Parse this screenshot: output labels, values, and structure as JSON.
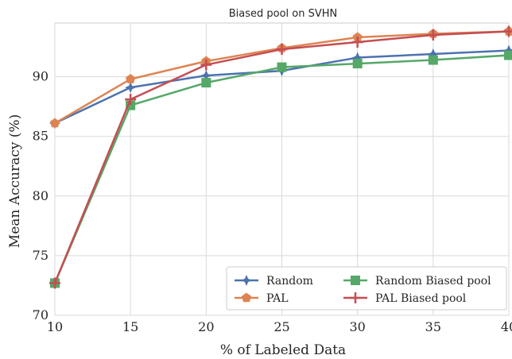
{
  "chart_data": {
    "type": "line",
    "title": "Biased pool on SVHN",
    "xlabel": "% of Labeled Data",
    "ylabel": "Mean Accuracy (%)",
    "x": [
      10,
      15,
      20,
      25,
      30,
      35,
      40
    ],
    "xticks": [
      "10",
      "15",
      "20",
      "25",
      "30",
      "35",
      "40"
    ],
    "yticks": [
      "70",
      "75",
      "80",
      "85",
      "90"
    ],
    "xlim": [
      10,
      40
    ],
    "ylim": [
      70,
      94.5
    ],
    "grid": true,
    "legend_position": "lower-right",
    "series": [
      {
        "name": "Random",
        "color": "#4c72b0",
        "marker": "star",
        "values": [
          86.1,
          89.1,
          90.1,
          90.5,
          91.6,
          91.9,
          92.2
        ]
      },
      {
        "name": "PAL",
        "color": "#dd8452",
        "marker": "pentagon",
        "values": [
          86.1,
          89.8,
          91.3,
          92.4,
          93.3,
          93.6,
          93.8
        ]
      },
      {
        "name": "Random Biased pool",
        "color": "#55a868",
        "marker": "square",
        "values": [
          72.7,
          87.6,
          89.5,
          90.8,
          91.1,
          91.4,
          91.8
        ]
      },
      {
        "name": "PAL Biased pool",
        "color": "#c44e52",
        "marker": "plus",
        "values": [
          72.7,
          88.1,
          91.0,
          92.3,
          92.9,
          93.5,
          93.8
        ]
      }
    ]
  }
}
